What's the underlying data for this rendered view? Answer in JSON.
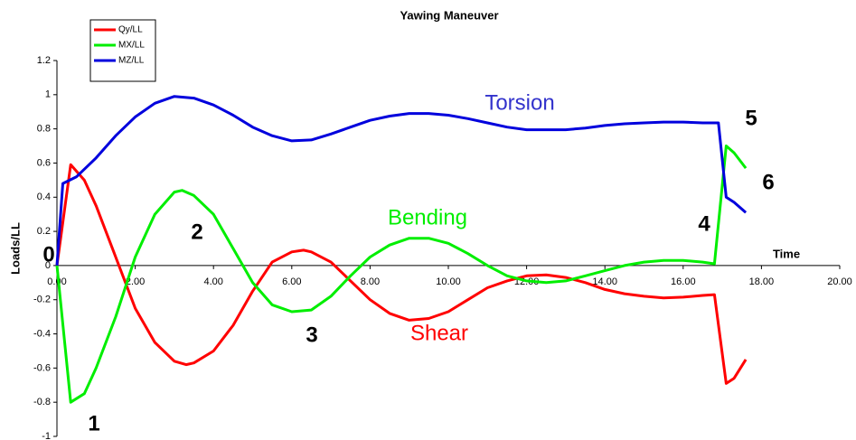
{
  "chart_data": {
    "type": "line",
    "title": "Yawing Maneuver",
    "xlabel": "Time",
    "ylabel": "Loads/LL",
    "xlim": [
      0,
      20
    ],
    "ylim": [
      -1,
      1.2
    ],
    "xticks": [
      {
        "value": 0,
        "label": "0.00"
      },
      {
        "value": 2,
        "label": "2.00"
      },
      {
        "value": 4,
        "label": "4.00"
      },
      {
        "value": 6,
        "label": "6.00"
      },
      {
        "value": 8,
        "label": "8.00"
      },
      {
        "value": 10,
        "label": "10.00"
      },
      {
        "value": 12,
        "label": "12.00"
      },
      {
        "value": 14,
        "label": "14.00"
      },
      {
        "value": 16,
        "label": "16.00"
      },
      {
        "value": 18,
        "label": "18.00"
      },
      {
        "value": 20,
        "label": "20.00"
      }
    ],
    "yticks": [
      -1,
      -0.8,
      -0.6,
      -0.4,
      -0.2,
      0,
      0.2,
      0.4,
      0.6,
      0.8,
      1,
      1.2
    ],
    "legend": "top-left",
    "series": [
      {
        "name": "Qy/LL",
        "color": "#ff0000",
        "x": [
          0,
          0.35,
          0.7,
          1,
          1.5,
          2,
          2.5,
          3,
          3.3,
          3.5,
          4,
          4.5,
          5,
          5.5,
          6,
          6.3,
          6.5,
          7,
          7.5,
          8,
          8.5,
          9,
          9.5,
          10,
          10.5,
          11,
          11.5,
          12,
          12.5,
          13,
          13.5,
          14,
          14.5,
          15,
          15.5,
          16,
          16.5,
          16.8,
          17.1,
          17.3,
          17.6
        ],
        "values": [
          0,
          0.59,
          0.5,
          0.35,
          0.05,
          -0.25,
          -0.45,
          -0.56,
          -0.58,
          -0.57,
          -0.5,
          -0.35,
          -0.15,
          0.02,
          0.08,
          0.09,
          0.08,
          0.02,
          -0.09,
          -0.2,
          -0.28,
          -0.32,
          -0.31,
          -0.27,
          -0.2,
          -0.13,
          -0.09,
          -0.06,
          -0.055,
          -0.07,
          -0.1,
          -0.14,
          -0.165,
          -0.18,
          -0.19,
          -0.185,
          -0.175,
          -0.17,
          -0.69,
          -0.66,
          -0.55
        ]
      },
      {
        "name": "MX/LL",
        "color": "#00ee00",
        "x": [
          0,
          0.35,
          0.7,
          1,
          1.5,
          2,
          2.5,
          3,
          3.2,
          3.5,
          4,
          4.5,
          5,
          5.5,
          6,
          6.5,
          7,
          7.5,
          8,
          8.5,
          9,
          9.5,
          10,
          10.5,
          11,
          11.5,
          12,
          12.5,
          13,
          13.5,
          14,
          14.5,
          15,
          15.5,
          16,
          16.5,
          16.8,
          17.1,
          17.3,
          17.6
        ],
        "values": [
          0,
          -0.8,
          -0.75,
          -0.6,
          -0.3,
          0.05,
          0.3,
          0.43,
          0.44,
          0.41,
          0.3,
          0.1,
          -0.1,
          -0.23,
          -0.27,
          -0.26,
          -0.18,
          -0.06,
          0.05,
          0.12,
          0.16,
          0.16,
          0.13,
          0.07,
          0,
          -0.06,
          -0.09,
          -0.1,
          -0.09,
          -0.06,
          -0.03,
          0,
          0.02,
          0.03,
          0.03,
          0.02,
          0.01,
          0.7,
          0.66,
          0.57
        ]
      },
      {
        "name": "MZ/LL",
        "color": "#0000dd",
        "x": [
          0,
          0.15,
          0.5,
          1,
          1.5,
          2,
          2.5,
          3,
          3.5,
          4,
          4.5,
          5,
          5.5,
          6,
          6.5,
          7,
          7.5,
          8,
          8.5,
          9,
          9.5,
          10,
          10.5,
          11,
          11.5,
          12,
          12.5,
          13,
          13.5,
          14,
          14.5,
          15,
          15.5,
          16,
          16.5,
          16.9,
          17.1,
          17.3,
          17.6
        ],
        "values": [
          0,
          0.48,
          0.52,
          0.63,
          0.76,
          0.87,
          0.95,
          0.99,
          0.98,
          0.94,
          0.88,
          0.81,
          0.76,
          0.73,
          0.735,
          0.77,
          0.81,
          0.85,
          0.875,
          0.89,
          0.89,
          0.88,
          0.86,
          0.835,
          0.81,
          0.795,
          0.795,
          0.795,
          0.805,
          0.82,
          0.83,
          0.835,
          0.84,
          0.84,
          0.835,
          0.835,
          0.4,
          0.37,
          0.31
        ]
      }
    ],
    "annotations": [
      {
        "text": "Torsion",
        "color": "#3333cc"
      },
      {
        "text": "Bending",
        "color": "#00ee00"
      },
      {
        "text": "Shear",
        "color": "#ff0000"
      },
      {
        "text": "0",
        "color": "#000000"
      },
      {
        "text": "1",
        "color": "#000000"
      },
      {
        "text": "2",
        "color": "#000000"
      },
      {
        "text": "3",
        "color": "#000000"
      },
      {
        "text": "4",
        "color": "#000000"
      },
      {
        "text": "5",
        "color": "#000000"
      },
      {
        "text": "6",
        "color": "#000000"
      }
    ]
  }
}
